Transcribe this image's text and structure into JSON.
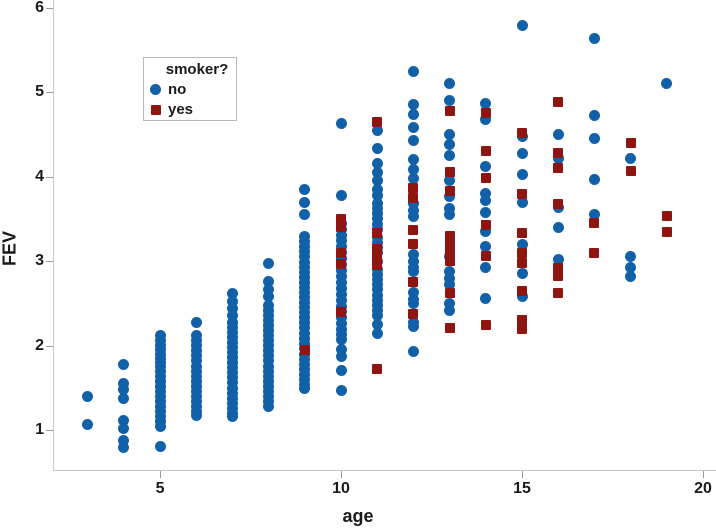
{
  "legend": {
    "title": "smoker?",
    "items": [
      {
        "label": "no",
        "marker": "circle",
        "color": "#1160a8"
      },
      {
        "label": "yes",
        "marker": "square",
        "color": "#8e1510"
      }
    ]
  },
  "colors": {
    "no_marker": "#1160a8",
    "yes_marker": "#8e1510",
    "axis_line": "#c8c8c8",
    "tick": "#9b9b9b",
    "text": "#1a1a1a",
    "background": "#ffffff"
  },
  "chart_data": {
    "type": "scatter",
    "title": "",
    "xlabel": "age",
    "ylabel": "FEV",
    "x_axis": {
      "min": 2.04,
      "max": 20.36,
      "ticks": [
        5,
        10,
        15,
        20
      ]
    },
    "y_axis": {
      "min": 0.53,
      "max": 6.09,
      "ticks": [
        1,
        2,
        3,
        4,
        5,
        6
      ]
    },
    "grid": false,
    "legend_position": "top-left-inside",
    "series": [
      {
        "name": "no",
        "marker": "circle",
        "color": "#1160a8",
        "points": [
          [
            3,
            1.4
          ],
          [
            3,
            1.07
          ],
          [
            4,
            1.78
          ],
          [
            4,
            1.55
          ],
          [
            4,
            1.48
          ],
          [
            4,
            1.38
          ],
          [
            4,
            1.12
          ],
          [
            4,
            1.02
          ],
          [
            4,
            0.88
          ],
          [
            4,
            0.8
          ],
          [
            5,
            2.12
          ],
          [
            5,
            2.06
          ],
          [
            5,
            2.0
          ],
          [
            5,
            1.95
          ],
          [
            5,
            1.9
          ],
          [
            5,
            1.85
          ],
          [
            5,
            1.8
          ],
          [
            5,
            1.75
          ],
          [
            5,
            1.7
          ],
          [
            5,
            1.64
          ],
          [
            5,
            1.58
          ],
          [
            5,
            1.52
          ],
          [
            5,
            1.46
          ],
          [
            5,
            1.4
          ],
          [
            5,
            1.34
          ],
          [
            5,
            1.28
          ],
          [
            5,
            1.22
          ],
          [
            5,
            1.16
          ],
          [
            5,
            1.1
          ],
          [
            5,
            1.04
          ],
          [
            5,
            0.81
          ],
          [
            6,
            2.27
          ],
          [
            6,
            2.12
          ],
          [
            6,
            2.06
          ],
          [
            6,
            2.0
          ],
          [
            6,
            1.94
          ],
          [
            6,
            1.88
          ],
          [
            6,
            1.82
          ],
          [
            6,
            1.76
          ],
          [
            6,
            1.7
          ],
          [
            6,
            1.64
          ],
          [
            6,
            1.58
          ],
          [
            6,
            1.52
          ],
          [
            6,
            1.46
          ],
          [
            6,
            1.4
          ],
          [
            6,
            1.34
          ],
          [
            6,
            1.28
          ],
          [
            6,
            1.22
          ],
          [
            6,
            1.18
          ],
          [
            7,
            2.62
          ],
          [
            7,
            2.52
          ],
          [
            7,
            2.44
          ],
          [
            7,
            2.36
          ],
          [
            7,
            2.28
          ],
          [
            7,
            2.22
          ],
          [
            7,
            2.16
          ],
          [
            7,
            2.1
          ],
          [
            7,
            2.04
          ],
          [
            7,
            1.98
          ],
          [
            7,
            1.92
          ],
          [
            7,
            1.86
          ],
          [
            7,
            1.8
          ],
          [
            7,
            1.74
          ],
          [
            7,
            1.68
          ],
          [
            7,
            1.62
          ],
          [
            7,
            1.56
          ],
          [
            7,
            1.5
          ],
          [
            7,
            1.44
          ],
          [
            7,
            1.38
          ],
          [
            7,
            1.32
          ],
          [
            7,
            1.26
          ],
          [
            7,
            1.2
          ],
          [
            7,
            1.16
          ],
          [
            8,
            2.97
          ],
          [
            8,
            2.76
          ],
          [
            8,
            2.67
          ],
          [
            8,
            2.58
          ],
          [
            8,
            2.48
          ],
          [
            8,
            2.42
          ],
          [
            8,
            2.36
          ],
          [
            8,
            2.3
          ],
          [
            8,
            2.24
          ],
          [
            8,
            2.18
          ],
          [
            8,
            2.12
          ],
          [
            8,
            2.06
          ],
          [
            8,
            2.0
          ],
          [
            8,
            1.94
          ],
          [
            8,
            1.88
          ],
          [
            8,
            1.82
          ],
          [
            8,
            1.76
          ],
          [
            8,
            1.7
          ],
          [
            8,
            1.64
          ],
          [
            8,
            1.58
          ],
          [
            8,
            1.52
          ],
          [
            8,
            1.46
          ],
          [
            8,
            1.4
          ],
          [
            8,
            1.34
          ],
          [
            8,
            1.28
          ],
          [
            9,
            3.85
          ],
          [
            9,
            3.69
          ],
          [
            9,
            3.55
          ],
          [
            9,
            3.29
          ],
          [
            9,
            3.23
          ],
          [
            9,
            3.17
          ],
          [
            9,
            3.11
          ],
          [
            9,
            3.05
          ],
          [
            9,
            2.99
          ],
          [
            9,
            2.93
          ],
          [
            9,
            2.87
          ],
          [
            9,
            2.81
          ],
          [
            9,
            2.75
          ],
          [
            9,
            2.69
          ],
          [
            9,
            2.63
          ],
          [
            9,
            2.57
          ],
          [
            9,
            2.51
          ],
          [
            9,
            2.45
          ],
          [
            9,
            2.39
          ],
          [
            9,
            2.33
          ],
          [
            9,
            2.27
          ],
          [
            9,
            2.21
          ],
          [
            9,
            2.15
          ],
          [
            9,
            2.09
          ],
          [
            9,
            2.03
          ],
          [
            9,
            1.97
          ],
          [
            9,
            1.9
          ],
          [
            9,
            1.84
          ],
          [
            9,
            1.78
          ],
          [
            9,
            1.72
          ],
          [
            9,
            1.66
          ],
          [
            9,
            1.6
          ],
          [
            9,
            1.54
          ],
          [
            9,
            1.5
          ],
          [
            10,
            4.63
          ],
          [
            10,
            3.78
          ],
          [
            10,
            3.45
          ],
          [
            10,
            3.38
          ],
          [
            10,
            3.31
          ],
          [
            10,
            3.24
          ],
          [
            10,
            3.17
          ],
          [
            10,
            3.1
          ],
          [
            10,
            3.03
          ],
          [
            10,
            2.96
          ],
          [
            10,
            2.89
          ],
          [
            10,
            2.82
          ],
          [
            10,
            2.75
          ],
          [
            10,
            2.68
          ],
          [
            10,
            2.61
          ],
          [
            10,
            2.54
          ],
          [
            10,
            2.47
          ],
          [
            10,
            2.4
          ],
          [
            10,
            2.33
          ],
          [
            10,
            2.26
          ],
          [
            10,
            2.19
          ],
          [
            10,
            2.13
          ],
          [
            10,
            2.07
          ],
          [
            10,
            1.95
          ],
          [
            10,
            1.87
          ],
          [
            10,
            1.71
          ],
          [
            10,
            1.47
          ],
          [
            11,
            4.55
          ],
          [
            11,
            4.33
          ],
          [
            11,
            4.15
          ],
          [
            11,
            4.05
          ],
          [
            11,
            3.95
          ],
          [
            11,
            3.85
          ],
          [
            11,
            3.78
          ],
          [
            11,
            3.68
          ],
          [
            11,
            3.62
          ],
          [
            11,
            3.56
          ],
          [
            11,
            3.5
          ],
          [
            11,
            3.44
          ],
          [
            11,
            3.38
          ],
          [
            11,
            3.28
          ],
          [
            11,
            3.22
          ],
          [
            11,
            3.16
          ],
          [
            11,
            3.1
          ],
          [
            11,
            3.0
          ],
          [
            11,
            2.9
          ],
          [
            11,
            2.84
          ],
          [
            11,
            2.78
          ],
          [
            11,
            2.72
          ],
          [
            11,
            2.66
          ],
          [
            11,
            2.6
          ],
          [
            11,
            2.54
          ],
          [
            11,
            2.48
          ],
          [
            11,
            2.42
          ],
          [
            11,
            2.36
          ],
          [
            11,
            2.25
          ],
          [
            11,
            2.15
          ],
          [
            12,
            5.24
          ],
          [
            12,
            4.85
          ],
          [
            12,
            4.73
          ],
          [
            12,
            4.58
          ],
          [
            12,
            4.43
          ],
          [
            12,
            4.2
          ],
          [
            12,
            4.08
          ],
          [
            12,
            3.98
          ],
          [
            12,
            3.68
          ],
          [
            12,
            3.6
          ],
          [
            12,
            3.53
          ],
          [
            12,
            3.08
          ],
          [
            12,
            3.0
          ],
          [
            12,
            2.93
          ],
          [
            12,
            2.88
          ],
          [
            12,
            2.63
          ],
          [
            12,
            2.55
          ],
          [
            12,
            2.5
          ],
          [
            12,
            2.28
          ],
          [
            12,
            2.23
          ],
          [
            12,
            1.93
          ],
          [
            13,
            5.1
          ],
          [
            13,
            4.9
          ],
          [
            13,
            4.5
          ],
          [
            13,
            4.38
          ],
          [
            13,
            4.25
          ],
          [
            13,
            3.95
          ],
          [
            13,
            3.76
          ],
          [
            13,
            3.62
          ],
          [
            13,
            3.55
          ],
          [
            13,
            3.05
          ],
          [
            13,
            2.88
          ],
          [
            13,
            2.8
          ],
          [
            13,
            2.73
          ],
          [
            13,
            2.5
          ],
          [
            13,
            2.42
          ],
          [
            14,
            4.87
          ],
          [
            14,
            4.68
          ],
          [
            14,
            4.12
          ],
          [
            14,
            3.8
          ],
          [
            14,
            3.72
          ],
          [
            14,
            3.58
          ],
          [
            14,
            3.35
          ],
          [
            14,
            3.17
          ],
          [
            14,
            2.92
          ],
          [
            14,
            2.56
          ],
          [
            15,
            5.79
          ],
          [
            15,
            4.47
          ],
          [
            15,
            4.28
          ],
          [
            15,
            4.02
          ],
          [
            15,
            3.7
          ],
          [
            15,
            3.2
          ],
          [
            15,
            2.86
          ],
          [
            15,
            2.58
          ],
          [
            16,
            4.5
          ],
          [
            16,
            4.22
          ],
          [
            16,
            3.63
          ],
          [
            16,
            3.4
          ],
          [
            16,
            3.02
          ],
          [
            17,
            5.64
          ],
          [
            17,
            4.72
          ],
          [
            17,
            4.45
          ],
          [
            17,
            3.97
          ],
          [
            17,
            3.55
          ],
          [
            18,
            4.22
          ],
          [
            18,
            3.05
          ],
          [
            18,
            2.92
          ],
          [
            18,
            2.82
          ],
          [
            19,
            5.1
          ]
        ]
      },
      {
        "name": "yes",
        "marker": "square",
        "color": "#8e1510",
        "points": [
          [
            9,
            1.95
          ],
          [
            10,
            3.5
          ],
          [
            10,
            3.4
          ],
          [
            10,
            3.1
          ],
          [
            10,
            2.97
          ],
          [
            10,
            2.4
          ],
          [
            11,
            4.65
          ],
          [
            11,
            3.33
          ],
          [
            11,
            3.15
          ],
          [
            11,
            3.05
          ],
          [
            11,
            2.95
          ],
          [
            11,
            1.72
          ],
          [
            12,
            3.87
          ],
          [
            12,
            3.75
          ],
          [
            12,
            3.37
          ],
          [
            12,
            3.2
          ],
          [
            12,
            2.75
          ],
          [
            12,
            2.38
          ],
          [
            13,
            4.78
          ],
          [
            13,
            4.06
          ],
          [
            13,
            3.83
          ],
          [
            13,
            3.3
          ],
          [
            13,
            3.21
          ],
          [
            13,
            3.11
          ],
          [
            13,
            3.0
          ],
          [
            13,
            2.62
          ],
          [
            13,
            2.21
          ],
          [
            14,
            4.75
          ],
          [
            14,
            4.3
          ],
          [
            14,
            3.98
          ],
          [
            14,
            3.43
          ],
          [
            14,
            3.06
          ],
          [
            14,
            2.25
          ],
          [
            15,
            4.52
          ],
          [
            15,
            3.8
          ],
          [
            15,
            3.33
          ],
          [
            15,
            3.1
          ],
          [
            15,
            2.98
          ],
          [
            15,
            2.65
          ],
          [
            15,
            2.3
          ],
          [
            15,
            2.2
          ],
          [
            16,
            4.88
          ],
          [
            16,
            4.28
          ],
          [
            16,
            4.1
          ],
          [
            16,
            3.68
          ],
          [
            16,
            2.92
          ],
          [
            16,
            2.82
          ],
          [
            16,
            2.62
          ],
          [
            17,
            3.45
          ],
          [
            17,
            3.1
          ],
          [
            18,
            4.4
          ],
          [
            18,
            4.07
          ],
          [
            19,
            3.53
          ],
          [
            19,
            3.35
          ]
        ]
      }
    ]
  }
}
